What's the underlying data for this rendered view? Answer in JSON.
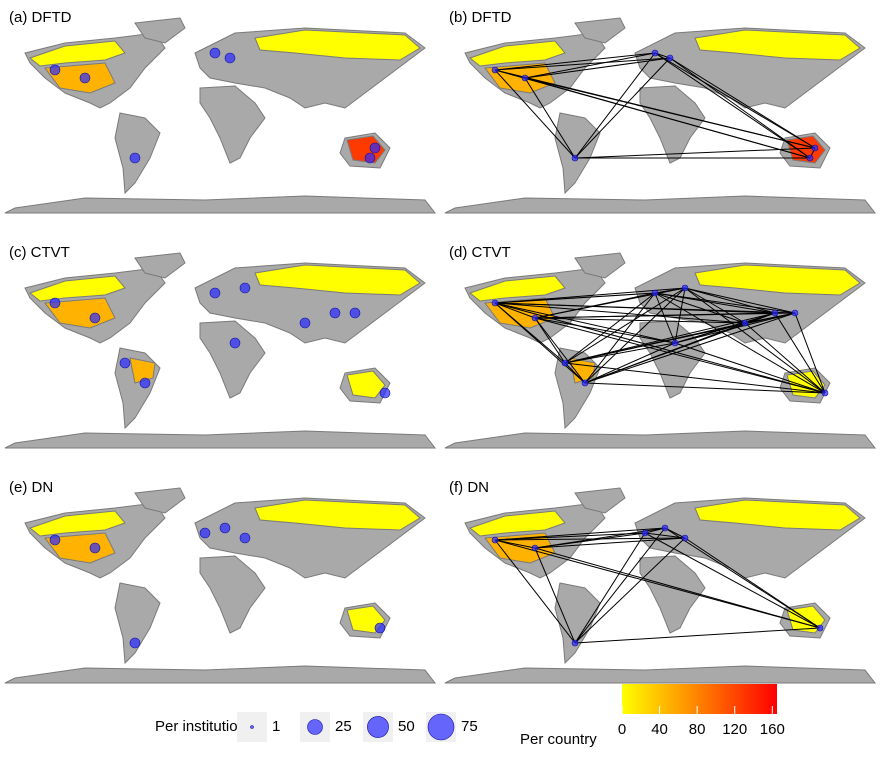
{
  "panels": [
    {
      "label": "(a) DFTD"
    },
    {
      "label": "(b) DFTD"
    },
    {
      "label": "(c) CTVT"
    },
    {
      "label": "(d) CTVT"
    },
    {
      "label": "(e) DN"
    },
    {
      "label": "(f) DN"
    }
  ],
  "legend": {
    "size": {
      "title": "Per institution",
      "values": [
        1,
        25,
        50,
        75
      ]
    },
    "color": {
      "title": "Per country",
      "lim": [
        0,
        165
      ],
      "ticks": [
        0,
        40,
        80,
        120,
        160
      ],
      "colors": [
        "#ffff00",
        "#ff0000"
      ]
    }
  }
}
